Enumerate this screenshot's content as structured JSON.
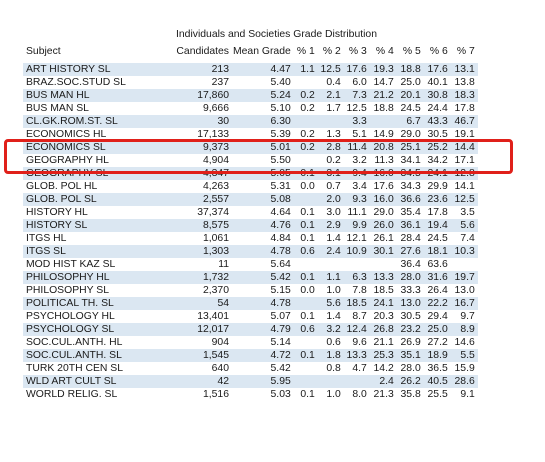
{
  "title": "Individuals and Societies Grade Distribution",
  "columns": [
    "Subject",
    "Candidates",
    "Mean Grade",
    "% 1",
    "% 2",
    "% 3",
    "% 4",
    "% 5",
    "% 6",
    "% 7"
  ],
  "highlight_color": "#e0201a",
  "rows": [
    [
      "ART HISTORY SL",
      "213",
      "4.47",
      "1.1",
      "12.5",
      "17.6",
      "19.3",
      "18.8",
      "17.6",
      "13.1"
    ],
    [
      "BRAZ.SOC.STUD SL",
      "237",
      "5.40",
      "",
      "0.4",
      "6.0",
      "14.7",
      "25.0",
      "40.1",
      "13.8"
    ],
    [
      "BUS MAN HL",
      "17,860",
      "5.24",
      "0.2",
      "2.1",
      "7.3",
      "21.2",
      "20.1",
      "30.8",
      "18.3"
    ],
    [
      "BUS MAN SL",
      "9,666",
      "5.10",
      "0.2",
      "1.7",
      "12.5",
      "18.8",
      "24.5",
      "24.4",
      "17.8"
    ],
    [
      "CL.GK.ROM.ST. SL",
      "30",
      "6.30",
      "",
      "",
      "3.3",
      "",
      "6.7",
      "43.3",
      "46.7"
    ],
    [
      "ECONOMICS HL",
      "17,133",
      "5.39",
      "0.2",
      "1.3",
      "5.1",
      "14.9",
      "29.0",
      "30.5",
      "19.1"
    ],
    [
      "ECONOMICS SL",
      "9,373",
      "5.01",
      "0.2",
      "2.8",
      "11.4",
      "20.8",
      "25.1",
      "25.2",
      "14.4"
    ],
    [
      "GEOGRAPHY HL",
      "4,904",
      "5.50",
      "",
      "0.2",
      "3.2",
      "11.3",
      "34.1",
      "34.2",
      "17.1"
    ],
    [
      "GEOGRAPHY SL",
      "4,347",
      "5.05",
      "0.1",
      "3.1",
      "9.4",
      "16.0",
      "34.5",
      "24.1",
      "12.8"
    ],
    [
      "GLOB. POL HL",
      "4,263",
      "5.31",
      "0.0",
      "0.7",
      "3.4",
      "17.6",
      "34.3",
      "29.9",
      "14.1"
    ],
    [
      "GLOB. POL SL",
      "2,557",
      "5.08",
      "",
      "2.0",
      "9.3",
      "16.0",
      "36.6",
      "23.6",
      "12.5"
    ],
    [
      "HISTORY HL",
      "37,374",
      "4.64",
      "0.1",
      "3.0",
      "11.1",
      "29.0",
      "35.4",
      "17.8",
      "3.5"
    ],
    [
      "HISTORY SL",
      "8,575",
      "4.76",
      "0.1",
      "2.9",
      "9.9",
      "26.0",
      "36.1",
      "19.4",
      "5.6"
    ],
    [
      "ITGS HL",
      "1,061",
      "4.84",
      "0.1",
      "1.4",
      "12.1",
      "26.1",
      "28.4",
      "24.5",
      "7.4"
    ],
    [
      "ITGS SL",
      "1,303",
      "4.78",
      "0.6",
      "2.4",
      "10.9",
      "30.1",
      "27.6",
      "18.1",
      "10.3"
    ],
    [
      "MOD HIST KAZ SL",
      "11",
      "5.64",
      "",
      "",
      "",
      "",
      "36.4",
      "63.6",
      ""
    ],
    [
      "PHILOSOPHY HL",
      "1,732",
      "5.42",
      "0.1",
      "1.1",
      "6.3",
      "13.3",
      "28.0",
      "31.6",
      "19.7"
    ],
    [
      "PHILOSOPHY SL",
      "2,370",
      "5.15",
      "0.0",
      "1.0",
      "7.8",
      "18.5",
      "33.3",
      "26.4",
      "13.0"
    ],
    [
      "POLITICAL TH. SL",
      "54",
      "4.78",
      "",
      "5.6",
      "18.5",
      "24.1",
      "13.0",
      "22.2",
      "16.7"
    ],
    [
      "PSYCHOLOGY HL",
      "13,401",
      "5.07",
      "0.1",
      "1.4",
      "8.7",
      "20.3",
      "30.5",
      "29.4",
      "9.7"
    ],
    [
      "PSYCHOLOGY SL",
      "12,017",
      "4.79",
      "0.6",
      "3.2",
      "12.4",
      "26.8",
      "23.2",
      "25.0",
      "8.9"
    ],
    [
      "SOC.CUL.ANTH. HL",
      "904",
      "5.14",
      "",
      "0.6",
      "9.6",
      "21.1",
      "26.9",
      "27.2",
      "14.6"
    ],
    [
      "SOC.CUL.ANTH. SL",
      "1,545",
      "4.72",
      "0.1",
      "1.8",
      "13.3",
      "25.3",
      "35.1",
      "18.9",
      "5.5"
    ],
    [
      "TURK 20TH CEN SL",
      "640",
      "5.42",
      "",
      "0.8",
      "4.7",
      "14.2",
      "28.0",
      "36.5",
      "15.9"
    ],
    [
      "WLD ART CULT SL",
      "42",
      "5.95",
      "",
      "",
      "",
      "2.4",
      "26.2",
      "40.5",
      "28.6"
    ],
    [
      "WORLD RELIG. SL",
      "1,516",
      "5.03",
      "0.1",
      "1.0",
      "8.0",
      "21.3",
      "35.8",
      "25.5",
      "9.1"
    ]
  ]
}
